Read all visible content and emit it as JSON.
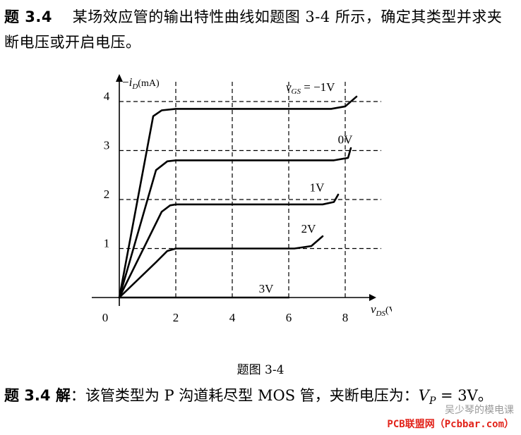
{
  "problem": {
    "label": "题 3.4",
    "text": "某场效应管的输出特性曲线如题图 3-4 所示，确定其类型并求夹断电压或开启电压。"
  },
  "figure": {
    "caption": "题图 3-4",
    "y_axis_label_prefix": "−",
    "y_axis_label_var": "i",
    "y_axis_label_sub": "D",
    "y_axis_label_unit": "(mA)",
    "x_axis_label_var": "v",
    "x_axis_label_sub": "DS",
    "x_axis_label_unit": "(V)",
    "curve_label_var": "v",
    "curve_label_sub": "GS",
    "curve_label_rest": " = −1V"
  },
  "chart_data": {
    "type": "line",
    "x_ticks": [
      "0",
      "2",
      "4",
      "6",
      "8"
    ],
    "y_ticks": [
      "1",
      "2",
      "3",
      "4"
    ],
    "xlim": [
      0,
      8.5
    ],
    "ylim": [
      0,
      4.3
    ],
    "grid": "dashed",
    "series": [
      {
        "name": "−1V",
        "x": [
          0,
          1.2,
          1.5,
          2,
          7.5,
          8,
          8.4
        ],
        "y": [
          0,
          3.7,
          3.82,
          3.85,
          3.85,
          3.9,
          4.1
        ]
      },
      {
        "name": "0V",
        "x": [
          0,
          1.3,
          1.7,
          2,
          7.6,
          8.1,
          8.2
        ],
        "y": [
          0,
          2.6,
          2.78,
          2.8,
          2.8,
          2.85,
          3.05
        ]
      },
      {
        "name": "1V",
        "x": [
          0,
          1.5,
          1.8,
          2,
          7.2,
          7.6,
          7.75
        ],
        "y": [
          0,
          1.75,
          1.88,
          1.9,
          1.9,
          1.95,
          2.1
        ]
      },
      {
        "name": "2V",
        "x": [
          0,
          1.3,
          1.7,
          2,
          6.2,
          6.8,
          7.2
        ],
        "y": [
          0,
          0.72,
          0.95,
          1.0,
          1.0,
          1.05,
          1.25
        ]
      },
      {
        "name": "3V",
        "x": [
          0,
          6
        ],
        "y": [
          0,
          0
        ]
      }
    ]
  },
  "answer": {
    "label": "题 3.4 解",
    "text": "：该管类型为 P 沟道耗尽型 MOS 管，夹断电压为：",
    "var": "V",
    "sub": "P",
    "eq": " = 3V。"
  },
  "watermark": {
    "top": "吴少琴的模电课",
    "bottom": "PCB联盟网（Pcbbar.com）"
  }
}
